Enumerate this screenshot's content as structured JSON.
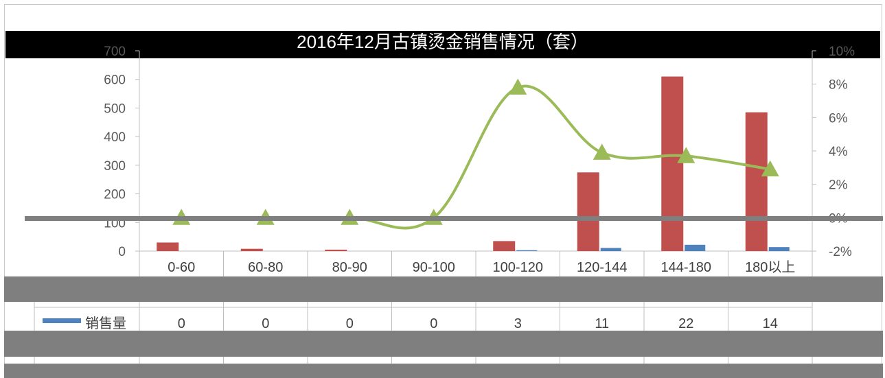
{
  "chart_data": {
    "type": "bar",
    "title": "2016年12月古镇烫金销售情况（套）",
    "categories": [
      "0-60",
      "60-80",
      "80-90",
      "90-100",
      "100-120",
      "120-144",
      "144-180",
      "180以上"
    ],
    "series": [
      {
        "name": "",
        "kind": "bar",
        "axis": "left",
        "color": "#c0504d",
        "values": [
          30,
          8,
          5,
          0,
          35,
          275,
          610,
          485
        ]
      },
      {
        "name": "销售量",
        "kind": "bar",
        "axis": "left",
        "color": "#4f81bd",
        "values": [
          0,
          0,
          0,
          0,
          3,
          11,
          22,
          14
        ]
      },
      {
        "name": "",
        "kind": "line",
        "axis": "right",
        "color": "#9bbb59",
        "values": [
          0,
          0,
          0,
          0,
          7.8,
          3.9,
          3.7,
          2.9
        ]
      }
    ],
    "y_left": {
      "min": 0,
      "max": 700,
      "step": 100,
      "ticks": [
        "0",
        "100",
        "200",
        "300",
        "400",
        "500",
        "600",
        "700"
      ]
    },
    "y_right": {
      "min": -2,
      "max": 10,
      "step": 2,
      "ticks": [
        "-2%",
        "0%",
        "2%",
        "4%",
        "6%",
        "8%",
        "10%"
      ]
    },
    "data_table": {
      "rows": [
        {
          "legend": "销售量",
          "cells": [
            "0",
            "0",
            "0",
            "0",
            "3",
            "11",
            "22",
            "14"
          ]
        }
      ]
    }
  }
}
